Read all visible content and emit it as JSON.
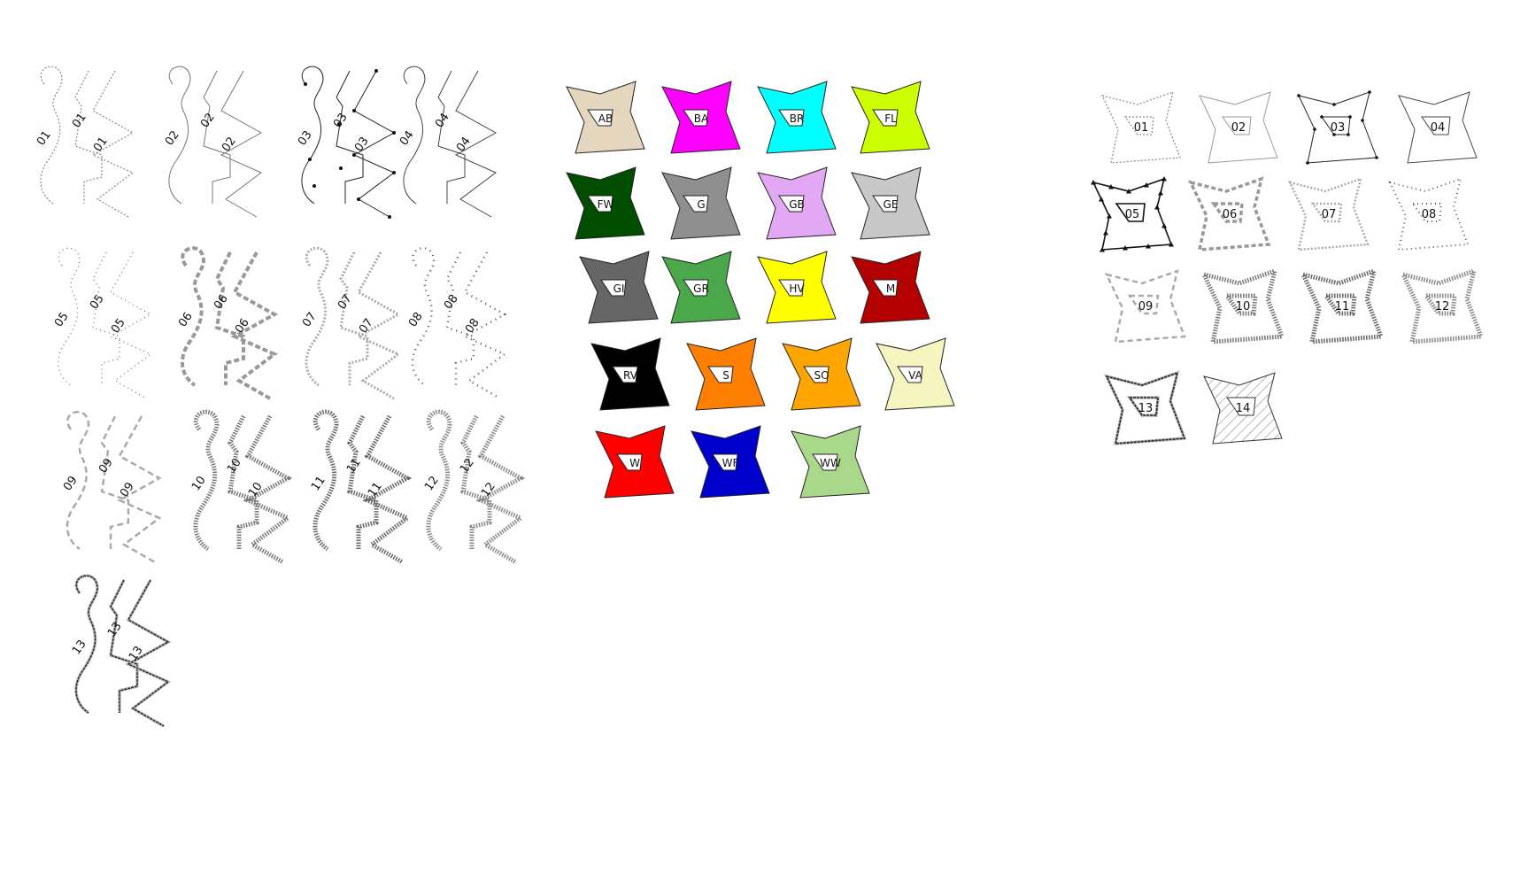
{
  "line_styles": {
    "labels": [
      "01",
      "02",
      "03",
      "04",
      "05",
      "06",
      "07",
      "08",
      "09",
      "10",
      "11",
      "12",
      "13"
    ]
  },
  "area_fills": {
    "items": [
      {
        "label": "AB",
        "color": "#e5d7be"
      },
      {
        "label": "BA",
        "color": "#ff00ff"
      },
      {
        "label": "BR",
        "color": "#00ffff"
      },
      {
        "label": "FL",
        "color": "#ccff00"
      },
      {
        "label": "FW",
        "color": "#004d00"
      },
      {
        "label": "G",
        "color": "#8f8f8f"
      },
      {
        "label": "GB",
        "color": "#e3a8f4"
      },
      {
        "label": "GE",
        "color": "#c8c8c8"
      },
      {
        "label": "GI",
        "color": "#666666"
      },
      {
        "label": "GR",
        "color": "#4aa84a"
      },
      {
        "label": "HV",
        "color": "#ffff00"
      },
      {
        "label": "M",
        "color": "#b30000"
      },
      {
        "label": "RV",
        "color": "#000000"
      },
      {
        "label": "S",
        "color": "#ff7f00"
      },
      {
        "label": "SO",
        "color": "#ffa500"
      },
      {
        "label": "VA",
        "color": "#f5f5c0"
      },
      {
        "label": "W",
        "color": "#ff0000"
      },
      {
        "label": "WF",
        "color": "#0000cc"
      },
      {
        "label": "WW",
        "color": "#aad88a"
      }
    ]
  },
  "border_styles": {
    "labels": [
      "01",
      "02",
      "03",
      "04",
      "05",
      "06",
      "07",
      "08",
      "09",
      "10",
      "11",
      "12",
      "13",
      "14"
    ]
  }
}
